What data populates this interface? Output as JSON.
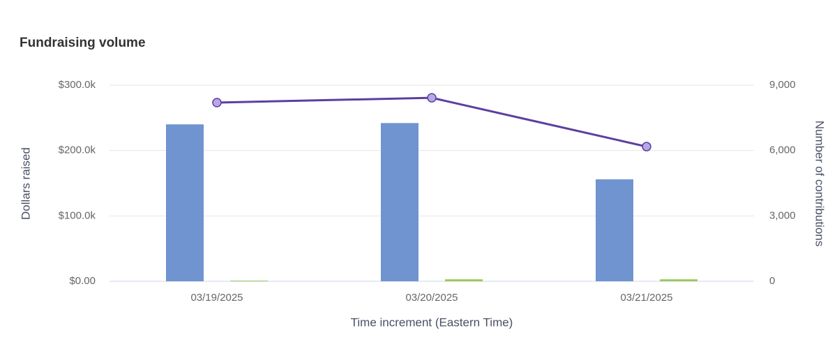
{
  "chart_data": {
    "type": "bar",
    "title": "Fundraising volume",
    "categories": [
      "03/19/2025",
      "03/20/2025",
      "03/21/2025"
    ],
    "series": [
      {
        "type": "bar",
        "color": "#7094d0",
        "values": [
          240000,
          242000,
          156000
        ]
      },
      {
        "type": "bar",
        "color": "#9bc85a",
        "values": [
          1000,
          3000,
          3000
        ]
      },
      {
        "type": "line",
        "axis": "y2",
        "color": "#5b3fa0",
        "marker_color": "#b9a6e6",
        "values": [
          8200,
          8420,
          6180
        ]
      }
    ],
    "y_label": "Dollars raised",
    "y2_label": "Number of contributions",
    "x_label": "Time increment (Eastern Time)",
    "ylim": [
      0,
      300000
    ],
    "yticks": [
      {
        "value": 0,
        "label": "$0.00"
      },
      {
        "value": 100000,
        "label": "$100.0k"
      },
      {
        "value": 200000,
        "label": "$200.0k"
      },
      {
        "value": 300000,
        "label": "$300.0k"
      }
    ],
    "y2lim": [
      0,
      9000
    ],
    "y2ticks": [
      0,
      {
        "value": 3000,
        "label": "3,000"
      },
      {
        "value": 6000,
        "label": "6,000"
      },
      {
        "value": 9000,
        "label": "9,000"
      }
    ],
    "grid": true
  }
}
